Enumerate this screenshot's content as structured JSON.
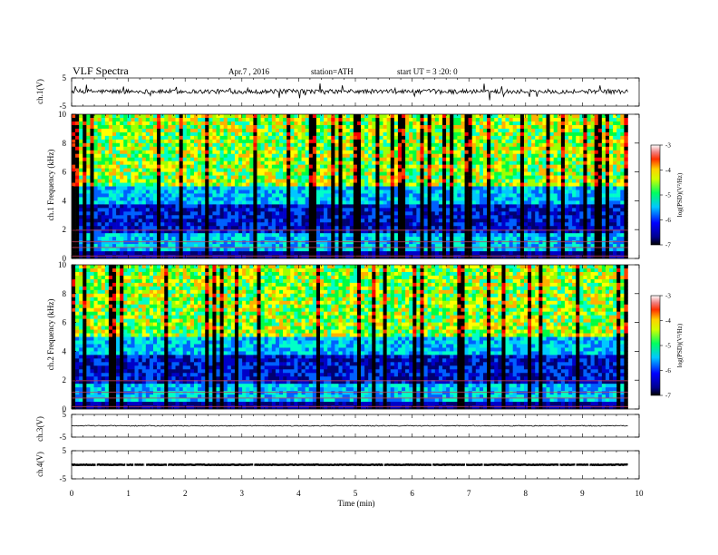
{
  "header": {
    "title": "VLF  Spectra",
    "date": "Apr.7  , 2016",
    "station": "station=ATH",
    "start": "start  UT  =   3  :20: 0"
  },
  "chart_data": [
    {
      "type": "line",
      "panel": "ch1-waveform",
      "ylabel": "ch.1(V)",
      "ylim": [
        -5,
        5
      ],
      "yticks": [
        "5",
        "-5"
      ],
      "x_range_min": [
        0,
        9.8
      ],
      "baseline_v": 0.2,
      "trace_color": "#000000"
    },
    {
      "type": "heatmap",
      "panel": "ch1-spectrogram",
      "ylabel": "ch.1 Frequency  (kHz)",
      "ylim": [
        0,
        10
      ],
      "yticks": [
        "0",
        "2",
        "4",
        "6",
        "8",
        "10"
      ],
      "x_range_min": [
        0,
        9.8
      ],
      "colorbar": {
        "label": "log(PSD)(V²/Hz)",
        "range": [
          -7,
          -3
        ],
        "ticks": [
          "-3",
          "-4",
          "-5",
          "-6",
          "-7"
        ]
      }
    },
    {
      "type": "heatmap",
      "panel": "ch2-spectrogram",
      "ylabel": "ch.2 Frequency  (kHz)",
      "ylim": [
        0,
        10
      ],
      "yticks": [
        "0",
        "2",
        "4",
        "6",
        "8",
        "10"
      ],
      "x_range_min": [
        0,
        9.8
      ],
      "colorbar": {
        "label": "log(PSD)(V²/Hz)",
        "range": [
          -7,
          -3
        ],
        "ticks": [
          "-3",
          "-4",
          "-5",
          "-6",
          "-7"
        ]
      }
    },
    {
      "type": "line",
      "panel": "ch3-waveform",
      "ylabel": "ch.3(V)",
      "ylim": [
        -5,
        5
      ],
      "yticks": [
        "5",
        "-5"
      ],
      "x_range_min": [
        0,
        9.8
      ],
      "baseline_v": 0.0,
      "trace_color": "#000000"
    },
    {
      "type": "line",
      "panel": "ch4-waveform",
      "ylabel": "ch.4(V)",
      "ylim": [
        -5,
        5
      ],
      "yticks": [
        "5",
        "-5"
      ],
      "x_range_min": [
        0,
        9.8
      ],
      "baseline_v": 0.0,
      "trace_color": "#000000"
    }
  ],
  "x_axis": {
    "label": "Time  (min)",
    "range": [
      0,
      10
    ],
    "ticks": [
      "0",
      "1",
      "2",
      "3",
      "4",
      "5",
      "6",
      "7",
      "8",
      "9",
      "10"
    ]
  }
}
